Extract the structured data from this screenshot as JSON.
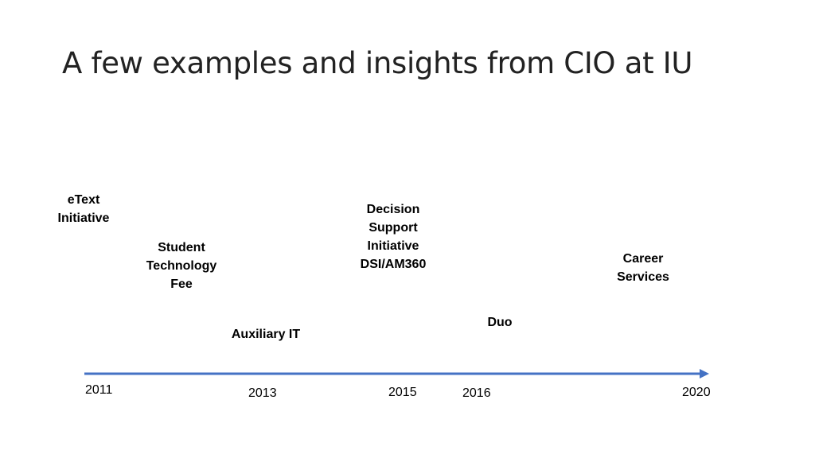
{
  "title": "A few examples and insights from CIO at IU",
  "colors": {
    "axis": "#4472C4",
    "text": "#000000",
    "title": "#222222"
  },
  "timeline": {
    "events": [
      {
        "lines": [
          "eText",
          "Initiative"
        ]
      },
      {
        "lines": [
          "Student",
          "Technology",
          "Fee"
        ]
      },
      {
        "lines": [
          "Auxiliary IT"
        ]
      },
      {
        "lines": [
          "Decision",
          "Support",
          "Initiative",
          "DSI/AM360"
        ]
      },
      {
        "lines": [
          "Duo"
        ]
      },
      {
        "lines": [
          "Career",
          "Services"
        ]
      }
    ],
    "years": [
      "2011",
      "2013",
      "2015",
      "2016",
      "2020"
    ]
  }
}
